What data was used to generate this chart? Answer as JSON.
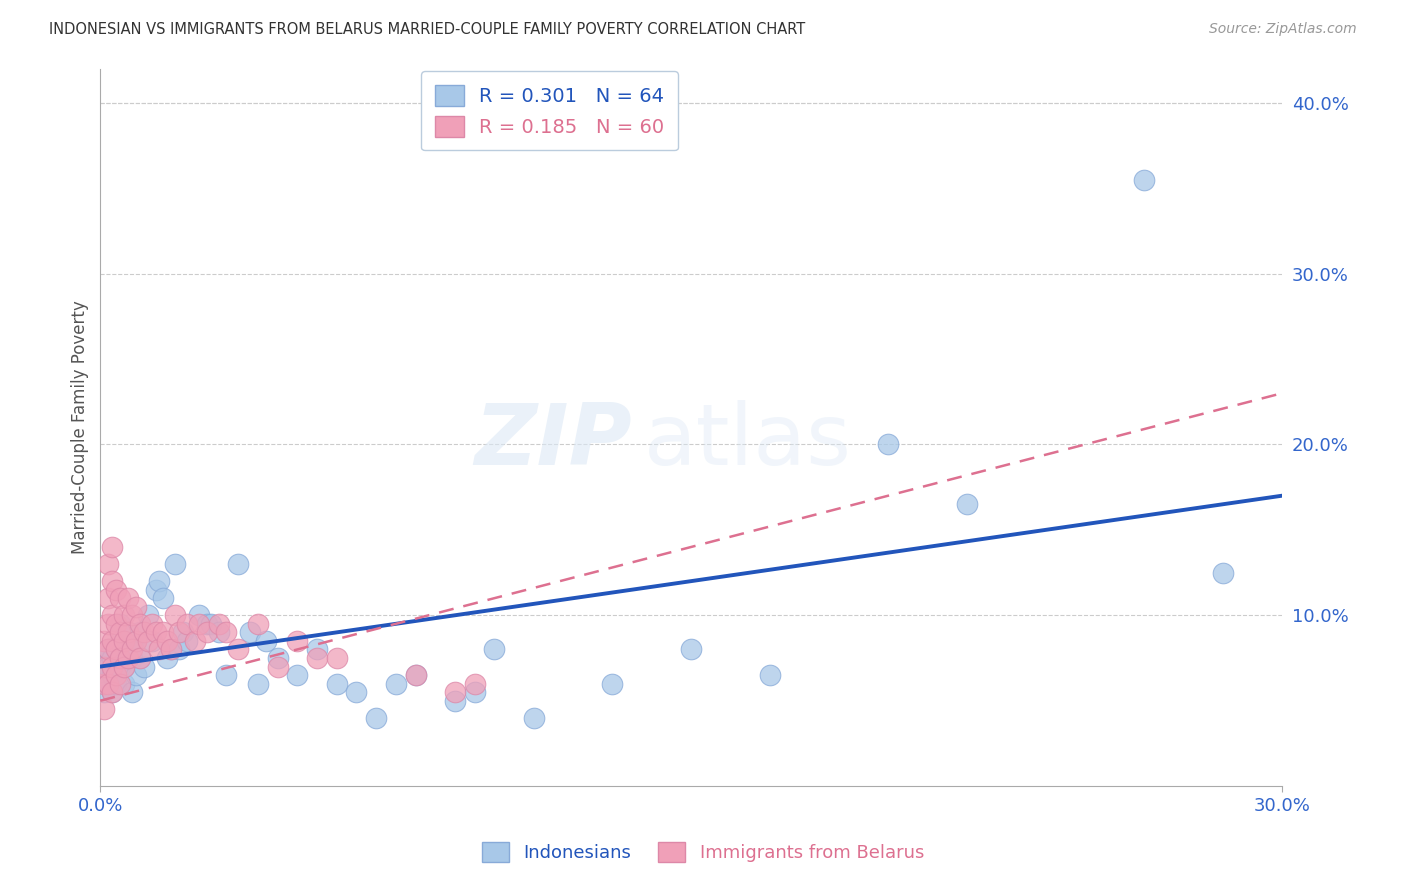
{
  "title": "INDONESIAN VS IMMIGRANTS FROM BELARUS MARRIED-COUPLE FAMILY POVERTY CORRELATION CHART",
  "source": "Source: ZipAtlas.com",
  "xlabel": "",
  "ylabel": "Married-Couple Family Poverty",
  "xlim": [
    0.0,
    0.3
  ],
  "ylim": [
    0.0,
    0.42
  ],
  "xticks": [
    0.0,
    0.3
  ],
  "xtick_labels": [
    "0.0%",
    "30.0%"
  ],
  "yticks_right": [
    0.1,
    0.2,
    0.3,
    0.4
  ],
  "ytick_labels_right": [
    "10.0%",
    "20.0%",
    "30.0%",
    "40.0%"
  ],
  "legend_labels_bottom": [
    "Indonesians",
    "Immigrants from Belarus"
  ],
  "indonesian_color": "#a8c8e8",
  "belarus_color": "#f0a0b8",
  "trendline_indonesian_color": "#2255bb",
  "trendline_belarus_color": "#dd7090",
  "watermark_zip": "ZIP",
  "watermark_atlas": "atlas",
  "indonesian_R": 0.301,
  "indonesian_N": 64,
  "belarus_R": 0.185,
  "belarus_N": 60,
  "ind_trend_x0": 0.0,
  "ind_trend_y0": 0.07,
  "ind_trend_x1": 0.3,
  "ind_trend_y1": 0.17,
  "bel_trend_x0": 0.0,
  "bel_trend_y0": 0.05,
  "bel_trend_x1": 0.3,
  "bel_trend_y1": 0.23,
  "indonesian_x": [
    0.001,
    0.001,
    0.001,
    0.002,
    0.002,
    0.002,
    0.003,
    0.003,
    0.003,
    0.004,
    0.004,
    0.005,
    0.005,
    0.005,
    0.006,
    0.006,
    0.007,
    0.007,
    0.008,
    0.008,
    0.009,
    0.009,
    0.01,
    0.01,
    0.011,
    0.012,
    0.013,
    0.014,
    0.015,
    0.016,
    0.017,
    0.018,
    0.019,
    0.02,
    0.021,
    0.022,
    0.025,
    0.027,
    0.028,
    0.03,
    0.032,
    0.035,
    0.038,
    0.04,
    0.042,
    0.045,
    0.05,
    0.055,
    0.06,
    0.065,
    0.07,
    0.075,
    0.08,
    0.09,
    0.095,
    0.1,
    0.11,
    0.13,
    0.15,
    0.17,
    0.2,
    0.22,
    0.265,
    0.285
  ],
  "indonesian_y": [
    0.065,
    0.075,
    0.055,
    0.06,
    0.07,
    0.08,
    0.055,
    0.065,
    0.075,
    0.06,
    0.08,
    0.07,
    0.085,
    0.095,
    0.06,
    0.07,
    0.08,
    0.09,
    0.055,
    0.075,
    0.065,
    0.085,
    0.075,
    0.09,
    0.07,
    0.1,
    0.085,
    0.115,
    0.12,
    0.11,
    0.075,
    0.08,
    0.13,
    0.08,
    0.09,
    0.085,
    0.1,
    0.095,
    0.095,
    0.09,
    0.065,
    0.13,
    0.09,
    0.06,
    0.085,
    0.075,
    0.065,
    0.08,
    0.06,
    0.055,
    0.04,
    0.06,
    0.065,
    0.05,
    0.055,
    0.08,
    0.04,
    0.06,
    0.08,
    0.065,
    0.2,
    0.165,
    0.355,
    0.125
  ],
  "belarus_x": [
    0.001,
    0.001,
    0.001,
    0.001,
    0.002,
    0.002,
    0.002,
    0.002,
    0.002,
    0.003,
    0.003,
    0.003,
    0.003,
    0.003,
    0.003,
    0.004,
    0.004,
    0.004,
    0.004,
    0.005,
    0.005,
    0.005,
    0.005,
    0.006,
    0.006,
    0.006,
    0.007,
    0.007,
    0.007,
    0.008,
    0.008,
    0.009,
    0.009,
    0.01,
    0.01,
    0.011,
    0.012,
    0.013,
    0.014,
    0.015,
    0.016,
    0.017,
    0.018,
    0.019,
    0.02,
    0.022,
    0.024,
    0.025,
    0.027,
    0.03,
    0.032,
    0.035,
    0.04,
    0.045,
    0.05,
    0.055,
    0.06,
    0.08,
    0.09,
    0.095
  ],
  "belarus_y": [
    0.045,
    0.06,
    0.07,
    0.085,
    0.06,
    0.08,
    0.095,
    0.11,
    0.13,
    0.055,
    0.07,
    0.085,
    0.1,
    0.12,
    0.14,
    0.065,
    0.08,
    0.095,
    0.115,
    0.06,
    0.075,
    0.09,
    0.11,
    0.07,
    0.085,
    0.1,
    0.075,
    0.09,
    0.11,
    0.08,
    0.1,
    0.085,
    0.105,
    0.075,
    0.095,
    0.09,
    0.085,
    0.095,
    0.09,
    0.08,
    0.09,
    0.085,
    0.08,
    0.1,
    0.09,
    0.095,
    0.085,
    0.095,
    0.09,
    0.095,
    0.09,
    0.08,
    0.095,
    0.07,
    0.085,
    0.075,
    0.075,
    0.065,
    0.055,
    0.06
  ]
}
